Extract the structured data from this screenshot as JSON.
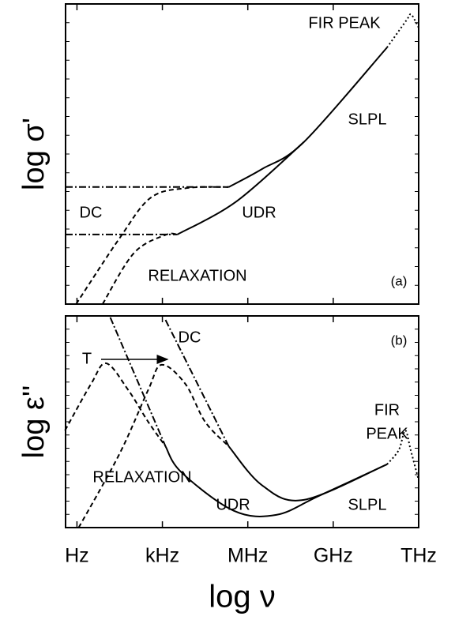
{
  "chart_data": [
    {
      "type": "line",
      "ylabel": "log σ'",
      "panel_label": "(a)",
      "xlim": [
        -0.4,
        12
      ],
      "ylim": [
        0,
        10
      ],
      "annotations": [
        "FIR PEAK",
        "SLPL",
        "DC",
        "UDR",
        "RELAXATION"
      ],
      "series": [
        {
          "style": "dashdot",
          "color": "#000",
          "x": [
            -0.4,
            5.33
          ],
          "values": [
            3.9,
            3.9
          ]
        },
        {
          "style": "dashdot",
          "color": "#000",
          "x": [
            -0.4,
            3.53
          ],
          "values": [
            2.32,
            2.32
          ]
        },
        {
          "style": "solid",
          "color": "#000",
          "x": [
            5.33,
            6.5,
            7.97,
            10.89
          ],
          "values": [
            3.9,
            4.5,
            5.4,
            8.55
          ]
        },
        {
          "style": "solid",
          "color": "#000",
          "x": [
            3.53,
            5.6,
            7.97
          ],
          "values": [
            2.32,
            3.42,
            5.4
          ]
        },
        {
          "style": "dotted",
          "color": "#000",
          "x": [
            10.89,
            11.58,
            11.72,
            11.86,
            12
          ],
          "values": [
            8.55,
            9.47,
            9.66,
            9.47,
            9.21
          ]
        },
        {
          "style": "dashed",
          "color": "#000",
          "x": [
            -0.03,
            1.5,
            2.6,
            3.9,
            5.33
          ],
          "values": [
            0,
            2.2,
            3.55,
            3.87,
            3.9
          ]
        },
        {
          "style": "dashed",
          "color": "#000",
          "x": [
            0.9,
            2.0,
            3.1,
            3.53
          ],
          "values": [
            0,
            1.7,
            2.3,
            2.32
          ]
        }
      ]
    },
    {
      "type": "line",
      "ylabel": "log ε''",
      "xlabel": "log ν",
      "panel_label": "(b)",
      "xlim": [
        -0.4,
        12
      ],
      "ylim": [
        0,
        10
      ],
      "xticks": [
        {
          "value": 0,
          "label": "Hz"
        },
        {
          "value": 3,
          "label": "kHz"
        },
        {
          "value": 6,
          "label": "MHz"
        },
        {
          "value": 9,
          "label": "GHz"
        },
        {
          "value": 12,
          "label": "THz"
        }
      ],
      "annotations": [
        "DC",
        "T",
        "FIR",
        "PEAK",
        "RELAXATION",
        "UDR",
        "SLPL"
      ],
      "series": [
        {
          "style": "dashdot",
          "color": "#000",
          "x": [
            1.17,
            3.11
          ],
          "values": [
            9.93,
            3.84
          ]
        },
        {
          "style": "dashdot",
          "color": "#000",
          "x": [
            3.11,
            5.33
          ],
          "values": [
            9.81,
            3.84
          ]
        },
        {
          "style": "dashed",
          "color": "#000",
          "x": [
            -0.42,
            0.5,
            1.03,
            1.8,
            2.5,
            3.11
          ],
          "values": [
            4.59,
            6.8,
            7.76,
            6.5,
            5,
            3.84
          ]
        },
        {
          "style": "dashed",
          "color": "#000",
          "x": [
            0.06,
            1.5,
            2.5,
            2.97,
            3.8,
            4.5,
            5.33
          ],
          "values": [
            0,
            3.5,
            6.5,
            7.69,
            6.8,
            5,
            3.84
          ]
        },
        {
          "style": "solid",
          "color": "#000",
          "x": [
            3.11,
            3.67,
            5.5,
            7.0,
            8.5,
            10.89
          ],
          "values": [
            3.84,
            2.61,
            0.8,
            0.6,
            1.5,
            2.99
          ]
        },
        {
          "style": "solid",
          "color": "#000",
          "x": [
            5.33,
            6.5,
            7.97,
            10.89
          ],
          "values": [
            3.84,
            2.0,
            1.31,
            2.99
          ]
        },
        {
          "style": "dotted",
          "color": "#000",
          "x": [
            10.89,
            11.3,
            11.53,
            11.72,
            12
          ],
          "values": [
            2.99,
            3.66,
            4.59,
            3.66,
            2.24
          ]
        }
      ]
    }
  ]
}
